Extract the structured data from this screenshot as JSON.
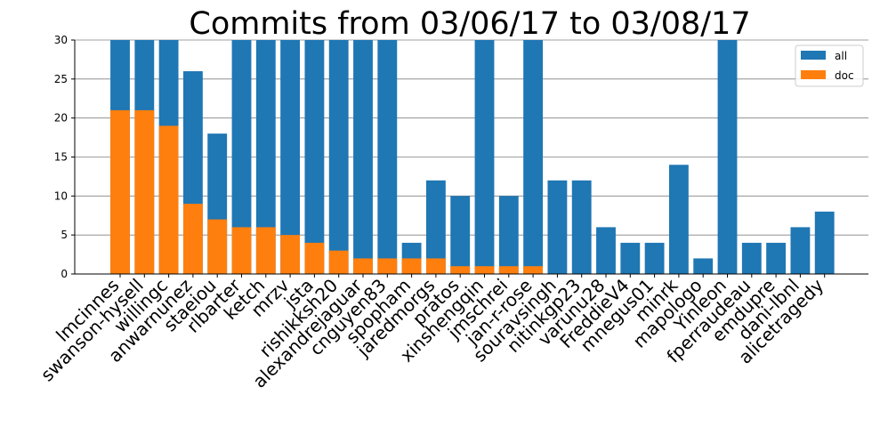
{
  "chart_data": {
    "type": "bar",
    "title": "Commits from 03/06/17 to 03/08/17",
    "xlabel": "",
    "ylabel": "",
    "ylim": [
      0,
      30
    ],
    "yticks": [
      0,
      5,
      10,
      15,
      20,
      25,
      30
    ],
    "grid": "horizontal",
    "legend_position": "top-right",
    "categories": [
      "lmcinnes",
      "swanson-hysell",
      "willingc",
      "anwarnunez",
      "staeiou",
      "rlbarter",
      "ketch",
      "mrzv",
      "jsta",
      "rishikksh20",
      "alexandrejaguar",
      "cnguyen83",
      "spopham",
      "jaredmorgs",
      "pratos",
      "xinshengqin",
      "jmschrei",
      "jan-r-rose",
      "souravsingh",
      "nitinkgp23",
      "varunu28",
      "FreddieV4",
      "mnegus01",
      "minrk",
      "mapologo",
      "Yinleon",
      "fperraudeau",
      "emdupre",
      "dani-lbnl",
      "alicetragedy"
    ],
    "series": [
      {
        "name": "all",
        "color": "#1f77b4",
        "values": [
          30,
          30,
          30,
          26,
          18,
          30,
          30,
          30,
          30,
          30,
          30,
          30,
          4,
          12,
          10,
          30,
          10,
          30,
          12,
          12,
          6,
          4,
          4,
          14,
          2,
          30,
          4,
          4,
          6,
          8
        ]
      },
      {
        "name": "doc",
        "color": "#ff7f0e",
        "values": [
          21,
          21,
          19,
          9,
          7,
          6,
          6,
          5,
          4,
          3,
          2,
          2,
          2,
          2,
          1,
          1,
          1,
          1,
          0,
          0,
          0,
          0,
          0,
          0,
          0,
          0,
          0,
          0,
          0,
          0
        ]
      }
    ]
  }
}
